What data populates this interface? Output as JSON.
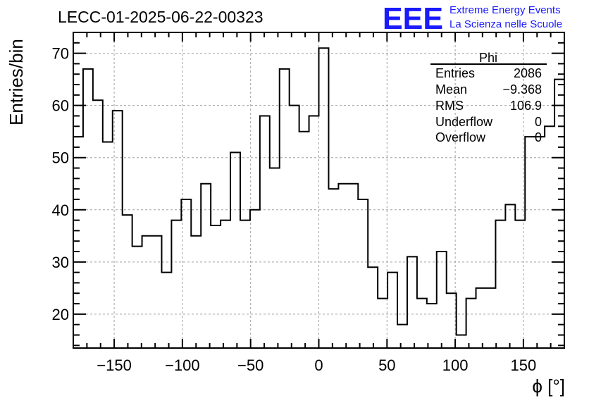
{
  "chart_data": {
    "type": "histogram",
    "title": "LECC-01-2025-06-22-00323",
    "xlabel": "ϕ [°]",
    "ylabel": "Entries/bin",
    "xlim": [
      -180,
      180
    ],
    "ylim": [
      13.5,
      74
    ],
    "bin_width": 7.2,
    "x_ticks": [
      -150,
      -100,
      -50,
      0,
      50,
      100,
      150
    ],
    "x_tick_labels": [
      "−150",
      "−100",
      "−50",
      "0",
      "50",
      "100",
      "150"
    ],
    "y_ticks": [
      20,
      30,
      40,
      50,
      60,
      70
    ],
    "y_tick_labels": [
      "20",
      "30",
      "40",
      "50",
      "60",
      "70"
    ],
    "grid": true,
    "values": [
      54,
      67,
      61,
      53,
      59,
      39,
      33,
      35,
      35,
      28,
      38,
      42,
      35,
      45,
      37,
      38,
      51,
      38,
      40,
      58,
      48,
      67,
      60,
      55,
      58,
      71,
      44,
      45,
      45,
      42,
      29,
      23,
      28,
      18,
      31,
      23,
      22,
      32,
      24,
      16,
      23,
      25,
      25,
      38,
      41,
      38,
      54,
      54,
      56,
      65
    ],
    "stats_box": {
      "name": "Phi",
      "rows": [
        {
          "label": "Entries",
          "value": "2086"
        },
        {
          "label": "Mean",
          "value": "−9.368"
        },
        {
          "label": "RMS",
          "value": "106.9"
        },
        {
          "label": "Underflow",
          "value": "0"
        },
        {
          "label": "Overflow",
          "value": "0"
        }
      ]
    }
  },
  "logo": {
    "mark": "EEE",
    "line1": "Extreme Energy Events",
    "line2": "La Scienza nelle Scuole",
    "color": "#1a1aff"
  }
}
